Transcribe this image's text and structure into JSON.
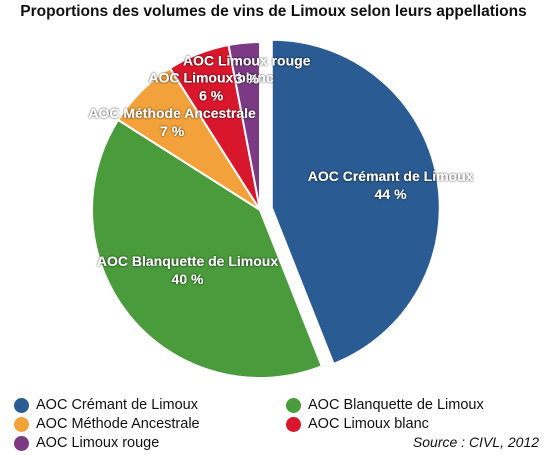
{
  "chart_data": {
    "type": "pie",
    "title": "Proportions des volumes de vins de Limoux selon leurs appellations",
    "slices": [
      {
        "name": "AOC Crémant de Limoux",
        "value": 44,
        "label": "44 %",
        "color": "#2A5B92"
      },
      {
        "name": "AOC Blanquette de Limoux",
        "value": 40,
        "label": "40 %",
        "color": "#4A9B3C"
      },
      {
        "name": "AOC Méthode Ancestrale",
        "value": 7,
        "label": "7 %",
        "color": "#F3A23B"
      },
      {
        "name": "AOC Limoux blanc",
        "value": 6,
        "label": "6 %",
        "color": "#D9172C"
      },
      {
        "name": "AOC Limoux rouge",
        "value": 3,
        "label": "3 %",
        "color": "#7B3A83"
      }
    ],
    "legend_position": "bottom",
    "exploded_slice": "AOC Crémant de Limoux"
  },
  "source": "Source : CIVL, 2012"
}
